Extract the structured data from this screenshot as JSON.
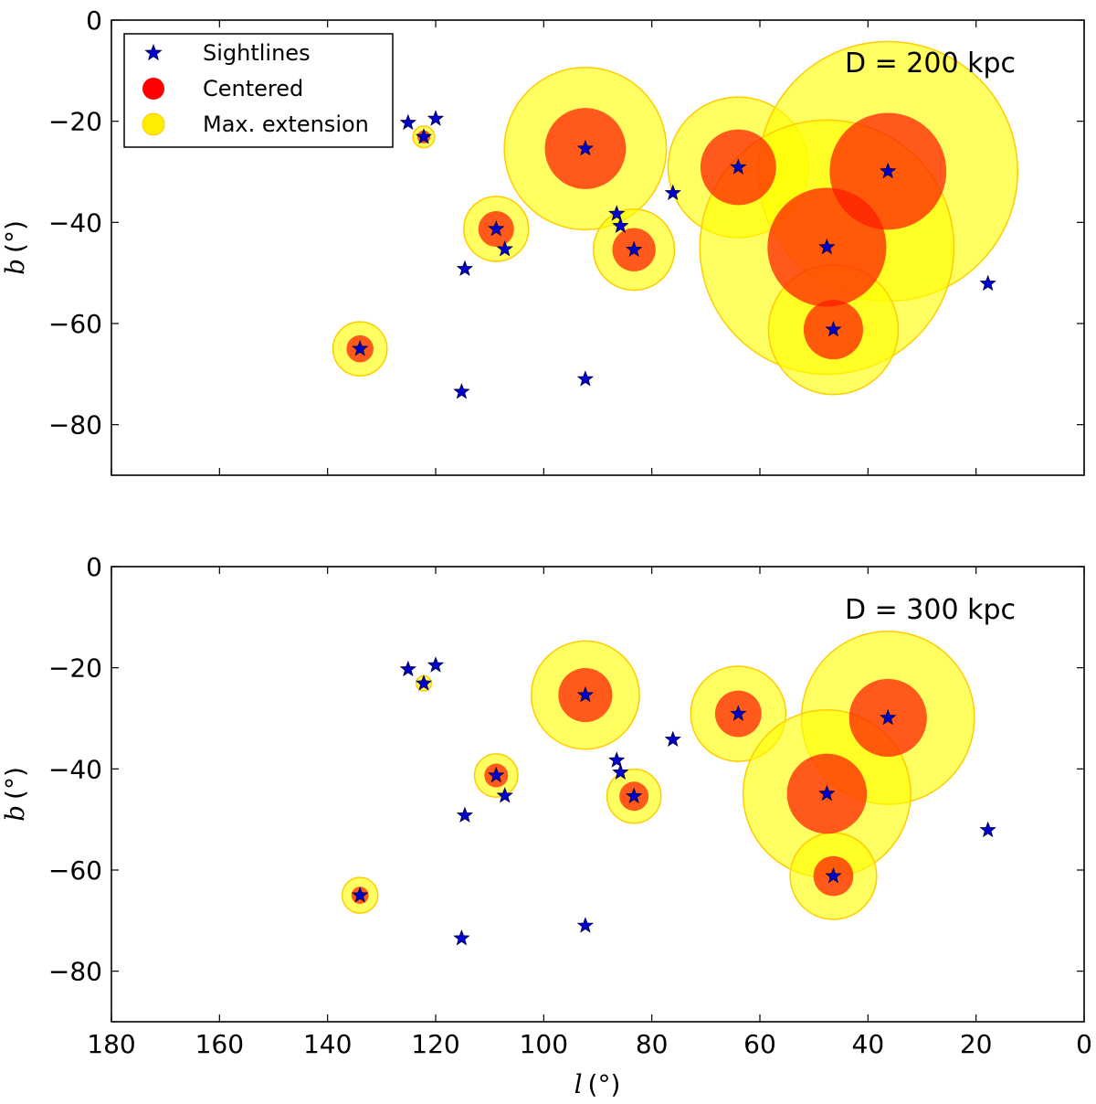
{
  "chart_data": {
    "type": "scatter",
    "subtype": "scatter-with-circles",
    "x_axis": {
      "label_var": "l",
      "label_unit": "(°)",
      "lim": [
        180,
        0
      ],
      "ticks": [
        180,
        160,
        140,
        120,
        100,
        80,
        60,
        40,
        20,
        0
      ],
      "tick_labels": [
        "180",
        "160",
        "140",
        "120",
        "100",
        "80",
        "60",
        "40",
        "20",
        "0"
      ]
    },
    "y_axis": {
      "label_var": "b",
      "label_unit": "(°)",
      "lim": [
        -90,
        0
      ],
      "ticks": [
        0,
        -20,
        -40,
        -60,
        -80
      ],
      "tick_labels": [
        "0",
        "−20",
        "−40",
        "−60",
        "−80"
      ]
    },
    "legend": {
      "location": "upper-left",
      "entries": [
        {
          "label": "Sightlines",
          "marker": "star",
          "color": "#0000cc"
        },
        {
          "label": "Centered",
          "marker": "circle",
          "color": "#ff0000"
        },
        {
          "label": "Max. extension",
          "marker": "circle",
          "color": "#ffee00"
        }
      ]
    },
    "colors": {
      "sightline": "#0000cc",
      "centered": "#ff1a00",
      "extension": "#ffff00",
      "extension_edge": "#ffcc00"
    },
    "sightlines": [
      {
        "l": 125.1,
        "b": -20.3
      },
      {
        "l": 120.0,
        "b": -19.5
      },
      {
        "l": 122.2,
        "b": -23.1
      },
      {
        "l": 114.6,
        "b": -49.2
      },
      {
        "l": 115.2,
        "b": -73.5
      },
      {
        "l": 108.8,
        "b": -41.3
      },
      {
        "l": 107.2,
        "b": -45.3
      },
      {
        "l": 92.3,
        "b": -25.4
      },
      {
        "l": 92.3,
        "b": -71.0
      },
      {
        "l": 86.5,
        "b": -38.3
      },
      {
        "l": 85.8,
        "b": -40.7
      },
      {
        "l": 83.3,
        "b": -45.4
      },
      {
        "l": 76.1,
        "b": -34.2
      },
      {
        "l": 64.0,
        "b": -29.1
      },
      {
        "l": 47.6,
        "b": -44.9
      },
      {
        "l": 46.4,
        "b": -61.2
      },
      {
        "l": 36.3,
        "b": -29.9
      },
      {
        "l": 134.0,
        "b": -65.0
      },
      {
        "l": 17.8,
        "b": -52.1
      }
    ],
    "panels": [
      {
        "annotation": "D = 200 kpc",
        "galaxies": [
          {
            "l": 134.0,
            "b": -65.0,
            "r_center": 2.5,
            "r_max": 5.0
          },
          {
            "l": 122.2,
            "b": -23.1,
            "r_center": 1.2,
            "r_max": 2.0
          },
          {
            "l": 108.8,
            "b": -41.3,
            "r_center": 3.3,
            "r_max": 6.0
          },
          {
            "l": 92.3,
            "b": -25.4,
            "r_center": 7.5,
            "r_max": 15.0
          },
          {
            "l": 83.3,
            "b": -45.4,
            "r_center": 4.0,
            "r_max": 7.5
          },
          {
            "l": 64.0,
            "b": -29.1,
            "r_center": 7.0,
            "r_max": 13.0
          },
          {
            "l": 36.3,
            "b": -29.9,
            "r_center": 10.8,
            "r_max": 24.0
          },
          {
            "l": 47.6,
            "b": -44.9,
            "r_center": 11.0,
            "r_max": 23.5
          },
          {
            "l": 46.4,
            "b": -61.2,
            "r_center": 5.5,
            "r_max": 12.0
          }
        ]
      },
      {
        "annotation": "D = 300 kpc",
        "galaxies": [
          {
            "l": 134.0,
            "b": -65.0,
            "r_center": 1.6,
            "r_max": 3.3
          },
          {
            "l": 122.2,
            "b": -23.1,
            "r_center": 0.8,
            "r_max": 1.4
          },
          {
            "l": 108.8,
            "b": -41.3,
            "r_center": 2.2,
            "r_max": 4.0
          },
          {
            "l": 92.3,
            "b": -25.4,
            "r_center": 5.0,
            "r_max": 10.0
          },
          {
            "l": 83.3,
            "b": -45.4,
            "r_center": 2.7,
            "r_max": 5.0
          },
          {
            "l": 64.0,
            "b": -29.1,
            "r_center": 4.3,
            "r_max": 8.8
          },
          {
            "l": 36.3,
            "b": -29.9,
            "r_center": 7.2,
            "r_max": 16.0
          },
          {
            "l": 47.6,
            "b": -44.9,
            "r_center": 7.4,
            "r_max": 15.5
          },
          {
            "l": 46.4,
            "b": -61.2,
            "r_center": 3.7,
            "r_max": 8.0
          }
        ]
      }
    ]
  }
}
